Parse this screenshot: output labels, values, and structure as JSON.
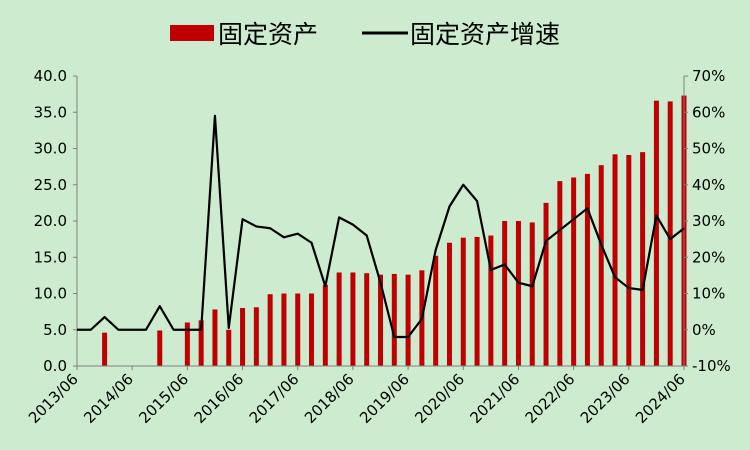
{
  "chart_data": {
    "type": "bar+line",
    "legend": {
      "placement": "top-center",
      "items": [
        {
          "label": "固定资产",
          "kind": "bar",
          "color": "#c00000"
        },
        {
          "label": "固定资产增速",
          "kind": "line",
          "color": "#000000"
        }
      ]
    },
    "x_axis": {
      "tick_labels": [
        "2013/06",
        "2014/06",
        "2015/06",
        "2016/06",
        "2017/06",
        "2018/06",
        "2019/06",
        "2020/06",
        "2021/06",
        "2022/06",
        "2023/06",
        "2024/06"
      ]
    },
    "y_left": {
      "ylim": [
        0,
        40
      ],
      "ticks": [
        0,
        5,
        10,
        15,
        20,
        25,
        30,
        35,
        40
      ],
      "tick_labels": [
        "0.0",
        "5.0",
        "10.0",
        "15.0",
        "20.0",
        "25.0",
        "30.0",
        "35.0",
        "40.0"
      ]
    },
    "y_right": {
      "ylim": [
        -10,
        70
      ],
      "ticks": [
        -10,
        0,
        10,
        20,
        30,
        40,
        50,
        60,
        70
      ],
      "tick_labels": [
        "-10%",
        "0%",
        "10%",
        "20%",
        "30%",
        "40%",
        "50%",
        "60%",
        "70%"
      ]
    },
    "grid": false,
    "x": [
      "2013/06",
      "2013/09",
      "2013/12",
      "2014/03",
      "2014/06",
      "2014/09",
      "2014/12",
      "2015/03",
      "2015/06",
      "2015/09",
      "2015/12",
      "2016/03",
      "2016/06",
      "2016/09",
      "2016/12",
      "2017/03",
      "2017/06",
      "2017/09",
      "2017/12",
      "2018/03",
      "2018/06",
      "2018/09",
      "2018/12",
      "2019/03",
      "2019/06",
      "2019/09",
      "2019/12",
      "2020/03",
      "2020/06",
      "2020/09",
      "2020/12",
      "2021/03",
      "2021/06",
      "2021/09",
      "2021/12",
      "2022/03",
      "2022/06",
      "2022/09",
      "2022/12",
      "2023/03",
      "2023/06",
      "2023/09",
      "2023/12",
      "2024/03",
      "2024/06"
    ],
    "series": [
      {
        "name": "固定资产",
        "type": "bar",
        "axis": "left",
        "values": [
          0.0,
          0.0,
          4.6,
          0.0,
          0.0,
          0.0,
          4.9,
          0.0,
          6.0,
          6.3,
          7.8,
          5.0,
          8.0,
          8.1,
          9.9,
          10.0,
          10.0,
          10.0,
          11.2,
          12.9,
          12.9,
          12.8,
          12.6,
          12.7,
          12.6,
          13.2,
          15.2,
          17.0,
          17.7,
          17.8,
          18.0,
          20.0,
          20.0,
          19.8,
          22.5,
          25.5,
          26.0,
          26.5,
          27.7,
          29.2,
          29.1,
          29.5,
          36.6,
          36.5,
          37.3
        ]
      },
      {
        "name": "固定资产增速",
        "type": "line",
        "axis": "right",
        "values": [
          0.0,
          0.0,
          3.5,
          0.0,
          0.0,
          0.0,
          6.5,
          0.0,
          0.0,
          0.0,
          59.0,
          0.5,
          30.5,
          28.5,
          28.0,
          25.5,
          26.5,
          24.0,
          12.0,
          31.0,
          29.0,
          26.0,
          13.0,
          -2.0,
          -2.0,
          3.0,
          22.0,
          34.0,
          40.0,
          35.5,
          16.5,
          18.0,
          13.0,
          12.0,
          24.5,
          27.5,
          30.5,
          33.5,
          23.5,
          14.5,
          11.5,
          11.0,
          31.5,
          25.0,
          28.0
        ]
      }
    ]
  }
}
